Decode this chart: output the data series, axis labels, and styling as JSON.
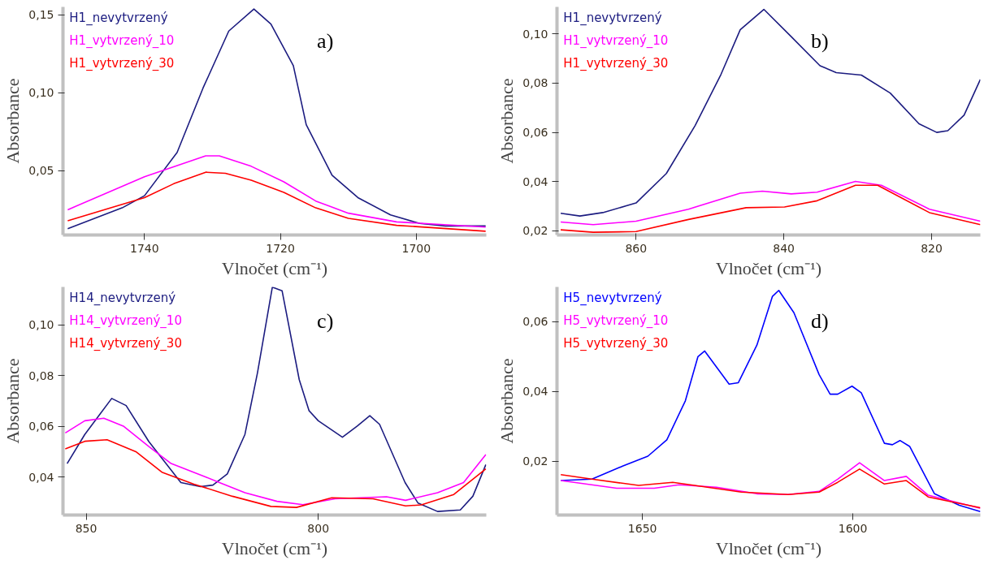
{
  "chart_data": [
    {
      "type": "line",
      "xlabel": "Vlnočet (cm⁻¹)",
      "ylabel": "Absorbance",
      "annotations": [
        "a)"
      ],
      "legend": "top left",
      "grid": false,
      "marker": "none",
      "line_style": "solid",
      "xlim": [
        1752,
        1689.7
      ],
      "ylim": [
        0.0086,
        0.155
      ],
      "xticks": [
        1740,
        1720,
        1700
      ],
      "yticks": [
        {
          "value": 0.05,
          "label": "0,05"
        },
        {
          "value": 0.1,
          "label": "0,10"
        },
        {
          "value": 0.15,
          "label": "0,15"
        }
      ],
      "series": [
        {
          "name": "H1_nevytvrzený",
          "color": "#1c1c80",
          "x": [
            1751.3,
            1743.3,
            1740,
            1735.2,
            1731.4,
            1727.6,
            1723.9,
            1721.4,
            1718.1,
            1716.2,
            1712.4,
            1708.6,
            1703.8,
            1699.5,
            1695.7,
            1689.8
          ],
          "values": [
            0.0126,
            0.026,
            0.0338,
            0.0616,
            0.1028,
            0.1395,
            0.1536,
            0.144,
            0.1173,
            0.0794,
            0.047,
            0.0326,
            0.0215,
            0.016,
            0.0144,
            0.0144
          ]
        },
        {
          "name": "H1_vytvrzený_10",
          "color": "#ff00ff",
          "x": [
            1751.3,
            1740,
            1731,
            1729,
            1724.3,
            1719.5,
            1714.8,
            1710,
            1702.9,
            1689.8
          ],
          "values": [
            0.0248,
            0.046,
            0.0594,
            0.0594,
            0.0527,
            0.0427,
            0.0304,
            0.0226,
            0.017,
            0.0137
          ]
        },
        {
          "name": "H1_vytvrzený_30",
          "color": "#ff0000",
          "x": [
            1751.3,
            1740,
            1735.7,
            1731,
            1728.1,
            1724.3,
            1719.5,
            1714.8,
            1710,
            1702.9,
            1689.8
          ],
          "values": [
            0.0177,
            0.0326,
            0.0415,
            0.0489,
            0.0482,
            0.0438,
            0.036,
            0.026,
            0.0193,
            0.0148,
            0.011
          ]
        }
      ]
    },
    {
      "type": "line",
      "xlabel": "Vlnočet (cm⁻¹)",
      "ylabel": "Absorbance",
      "annotations": [
        "b)"
      ],
      "legend": "top left",
      "grid": false,
      "marker": "none",
      "line_style": "solid",
      "xlim": [
        870.7,
        813.4
      ],
      "ylim": [
        0.0183,
        0.111
      ],
      "xticks": [
        860,
        840,
        820
      ],
      "yticks": [
        {
          "value": 0.02,
          "label": "0,02"
        },
        {
          "value": 0.04,
          "label": "0,04"
        },
        {
          "value": 0.06,
          "label": "0,06"
        },
        {
          "value": 0.08,
          "label": "0,08"
        },
        {
          "value": 0.1,
          "label": "0,10"
        }
      ],
      "series": [
        {
          "name": "H1_nevytvrzený",
          "color": "#1c1c80",
          "x": [
            870.2,
            867.6,
            864.5,
            860,
            855.9,
            852,
            848.5,
            845.9,
            842.7,
            839,
            835.1,
            832.9,
            829.5,
            825.6,
            821.7,
            819.3,
            817.8,
            815.6,
            813.4
          ],
          "values": [
            0.0271,
            0.026,
            0.0274,
            0.0313,
            0.0433,
            0.0628,
            0.0836,
            0.1017,
            0.11,
            0.0989,
            0.0871,
            0.0843,
            0.0833,
            0.076,
            0.0635,
            0.06,
            0.0607,
            0.067,
            0.0815
          ]
        },
        {
          "name": "H1_vytvrzený_10",
          "color": "#ff00ff",
          "x": [
            870.2,
            865.8,
            860,
            852.9,
            845.9,
            842.9,
            839,
            835.5,
            830.3,
            826.8,
            820.3,
            813.4
          ],
          "values": [
            0.0236,
            0.0225,
            0.0239,
            0.0288,
            0.0353,
            0.0361,
            0.035,
            0.0357,
            0.0401,
            0.0385,
            0.0288,
            0.0239
          ]
        },
        {
          "name": "H1_vytvrzený_30",
          "color": "#ff0000",
          "x": [
            870.2,
            865.8,
            860,
            852.9,
            845.1,
            839.9,
            835.5,
            830.3,
            827.3,
            820.3,
            813.4
          ],
          "values": [
            0.0204,
            0.0194,
            0.0197,
            0.0246,
            0.0294,
            0.0297,
            0.0322,
            0.0385,
            0.0385,
            0.0274,
            0.0225
          ]
        }
      ]
    },
    {
      "type": "line",
      "xlabel": "Vlnočet (cm⁻¹)",
      "ylabel": "Absorbance",
      "annotations": [
        "c)"
      ],
      "legend": "top left",
      "grid": false,
      "marker": "none",
      "line_style": "solid",
      "xlim": [
        855,
        763.8
      ],
      "ylim": [
        0.025,
        0.115
      ],
      "xticks": [
        850,
        800
      ],
      "yticks": [
        {
          "value": 0.04,
          "label": "0,04"
        },
        {
          "value": 0.06,
          "label": "0,06"
        },
        {
          "value": 0.08,
          "label": "0,08"
        },
        {
          "value": 0.1,
          "label": "0,10"
        }
      ],
      "series": [
        {
          "name": "H14_nevytvrzený",
          "color": "#1c1c80",
          "x": [
            854.1,
            850.3,
            844.5,
            841.4,
            836.5,
            829.6,
            825.4,
            822.7,
            819.6,
            815.8,
            813.1,
            809.9,
            807.8,
            804.1,
            802,
            800,
            794.8,
            791.6,
            788.9,
            786.8,
            781.3,
            778.5,
            774.3,
            769.4,
            766.7,
            763.9
          ],
          "values": [
            0.0453,
            0.0568,
            0.071,
            0.0682,
            0.054,
            0.0378,
            0.0362,
            0.0368,
            0.0412,
            0.0568,
            0.0811,
            0.1149,
            0.1135,
            0.0784,
            0.0662,
            0.0622,
            0.0557,
            0.0601,
            0.0642,
            0.0608,
            0.0378,
            0.0297,
            0.0264,
            0.027,
            0.0324,
            0.0449
          ]
        },
        {
          "name": "H14_vytvrzený_10",
          "color": "#ff00ff",
          "x": [
            854.5,
            850.3,
            846.2,
            842,
            836.5,
            831.7,
            824.1,
            821.3,
            815.8,
            808.9,
            803.3,
            796.4,
            785.3,
            781.2,
            774.3,
            768.7,
            763.9
          ],
          "values": [
            0.0574,
            0.0622,
            0.0632,
            0.0601,
            0.052,
            0.0453,
            0.0399,
            0.0378,
            0.0338,
            0.0304,
            0.0291,
            0.0314,
            0.0322,
            0.0308,
            0.0338,
            0.0378,
            0.0489
          ]
        },
        {
          "name": "H14_vytvrzený_30",
          "color": "#ff0000",
          "x": [
            854.5,
            850.3,
            845.5,
            839.3,
            833.7,
            826.8,
            818.5,
            810.2,
            804.7,
            797.1,
            788.2,
            781.2,
            777.8,
            770.8,
            763.9
          ],
          "values": [
            0.0511,
            0.0541,
            0.0547,
            0.05,
            0.0419,
            0.0372,
            0.0324,
            0.0284,
            0.028,
            0.0318,
            0.0314,
            0.0286,
            0.029,
            0.0331,
            0.0432
          ]
        }
      ]
    },
    {
      "type": "line",
      "xlabel": "Vlnočet (cm⁻¹)",
      "ylabel": "Absorbance",
      "annotations": [
        "d)"
      ],
      "legend": "top left",
      "grid": false,
      "marker": "none",
      "line_style": "solid",
      "xlim": [
        1670.3,
        1569.7
      ],
      "ylim": [
        0.0045,
        0.07
      ],
      "xticks": [
        1650,
        1600
      ],
      "yticks": [
        {
          "value": 0.02,
          "label": "0,02"
        },
        {
          "value": 0.04,
          "label": "0,04"
        },
        {
          "value": 0.06,
          "label": "0,06"
        }
      ],
      "series": [
        {
          "name": "H5_nevytvrzený",
          "color": "#0000ff",
          "x": [
            1669.4,
            1662,
            1654.6,
            1648.7,
            1644.2,
            1639.8,
            1636.8,
            1635.2,
            1629.4,
            1627.2,
            1622.8,
            1619.1,
            1617.6,
            1614,
            1608,
            1605.4,
            1603.6,
            1600.2,
            1598,
            1592.5,
            1590.6,
            1588.8,
            1586.5,
            1580.6,
            1574.7,
            1569.7
          ],
          "values": [
            0.0144,
            0.0148,
            0.0186,
            0.0214,
            0.0261,
            0.0373,
            0.05,
            0.0516,
            0.0421,
            0.0425,
            0.0533,
            0.0673,
            0.069,
            0.0626,
            0.0448,
            0.0392,
            0.0392,
            0.0415,
            0.0396,
            0.0251,
            0.0247,
            0.0259,
            0.0242,
            0.0106,
            0.0073,
            0.0055
          ]
        },
        {
          "name": "H5_vytvrzený_10",
          "color": "#ff00ff",
          "x": [
            1669.4,
            1656.1,
            1647.2,
            1641.3,
            1632.4,
            1622.8,
            1615.4,
            1608,
            1603.6,
            1598.4,
            1592.5,
            1587.3,
            1582.1,
            1569.7
          ],
          "values": [
            0.0144,
            0.0122,
            0.0122,
            0.0132,
            0.0125,
            0.0106,
            0.0104,
            0.0113,
            0.0148,
            0.0195,
            0.0144,
            0.0156,
            0.0102,
            0.0064
          ]
        },
        {
          "name": "H5_vytvrzený_30",
          "color": "#ff0000",
          "x": [
            1669.4,
            1662,
            1650.9,
            1642.8,
            1637.6,
            1626.5,
            1615.4,
            1608,
            1603.6,
            1598.4,
            1592.5,
            1587.3,
            1582.1,
            1569.7
          ],
          "values": [
            0.0161,
            0.0148,
            0.013,
            0.0139,
            0.013,
            0.0111,
            0.0104,
            0.0111,
            0.0139,
            0.0177,
            0.0134,
            0.0144,
            0.0097,
            0.0066
          ]
        }
      ]
    }
  ]
}
